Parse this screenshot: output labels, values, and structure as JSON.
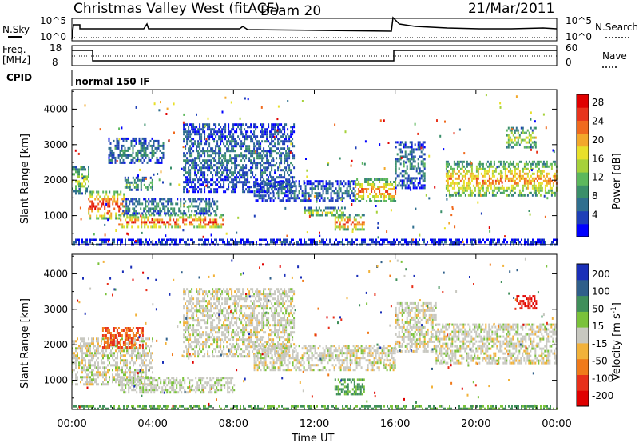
{
  "header": {
    "station": "Christmas Valley West (fitACF)",
    "beam": "Beam 20",
    "date": "21/Mar/2011"
  },
  "top_panels": {
    "nsky_label": "N.Sky",
    "nsky_ticks": [
      "10^5",
      "10^0"
    ],
    "nsearch_label": "N.Search",
    "nsearch_ticks": [
      "10^5",
      "10^0"
    ],
    "freq_label_line1": "Freq.",
    "freq_label_line2": "[MHz]",
    "freq_ticks": [
      "18",
      "8"
    ],
    "nave_label": "Nave",
    "nave_ticks": [
      "60",
      "0"
    ],
    "cpid_label": "CPID",
    "cpid_value": "normal 150 IF"
  },
  "chart_data": [
    {
      "type": "heatmap",
      "name": "power",
      "xlabel": "",
      "ylabel": "Slant Range [km]",
      "xlim": [
        0,
        24
      ],
      "ylim": [
        180,
        4550
      ],
      "yticks": [
        "1000",
        "2000",
        "3000",
        "4000"
      ],
      "xticks": [
        "00:00",
        "04:00",
        "08:00",
        "12:00",
        "16:00",
        "20:00",
        "00:00"
      ],
      "colorbar": {
        "label": "Power [dB]",
        "ticks": [
          "4",
          "8",
          "12",
          "16",
          "20",
          "24",
          "28"
        ],
        "colors": [
          "#0000ff",
          "#1e3fb8",
          "#2f6f8f",
          "#3a8f6a",
          "#5cb85c",
          "#a6d13a",
          "#e8e02a",
          "#f3a82a",
          "#f06a1e",
          "#e8341c",
          "#e00000"
        ]
      },
      "features": [
        {
          "t0": 0.0,
          "t1": 0.8,
          "r0": 1650,
          "r1": 2400,
          "level": 0.55
        },
        {
          "t0": 0.8,
          "t1": 2.6,
          "r0": 900,
          "r1": 1700,
          "level": 0.95
        },
        {
          "t0": 2.6,
          "t1": 4.0,
          "r0": 1700,
          "r1": 2100,
          "level": 0.4
        },
        {
          "t0": 1.8,
          "t1": 4.5,
          "r0": 2500,
          "r1": 3200,
          "level": 0.3
        },
        {
          "t0": 2.3,
          "t1": 7.5,
          "r0": 650,
          "r1": 1050,
          "level": 0.9
        },
        {
          "t0": 2.5,
          "t1": 7.2,
          "r0": 1050,
          "r1": 1500,
          "level": 0.35
        },
        {
          "t0": 5.5,
          "t1": 11.0,
          "r0": 1700,
          "r1": 3600,
          "level": 0.25
        },
        {
          "t0": 9.0,
          "t1": 14.0,
          "r0": 1400,
          "r1": 2000,
          "level": 0.25
        },
        {
          "t0": 11.5,
          "t1": 13.5,
          "r0": 1000,
          "r1": 1250,
          "level": 0.55
        },
        {
          "t0": 13.0,
          "t1": 14.5,
          "r0": 600,
          "r1": 1050,
          "level": 0.85
        },
        {
          "t0": 14.0,
          "t1": 16.0,
          "r0": 1400,
          "r1": 2050,
          "level": 0.8
        },
        {
          "t0": 16.0,
          "t1": 17.5,
          "r0": 1800,
          "r1": 3100,
          "level": 0.3
        },
        {
          "t0": 18.5,
          "t1": 24.0,
          "r0": 1550,
          "r1": 2550,
          "level": 0.75
        },
        {
          "t0": 21.5,
          "t1": 23.0,
          "r0": 2900,
          "r1": 3500,
          "level": 0.55
        },
        {
          "t0": 0.0,
          "t1": 24.0,
          "r0": 180,
          "r1": 350,
          "level": 0.15
        }
      ]
    },
    {
      "type": "heatmap",
      "name": "velocity",
      "xlabel": "Time UT",
      "ylabel": "Slant Range [km]",
      "xlim": [
        0,
        24
      ],
      "ylim": [
        180,
        4550
      ],
      "yticks": [
        "1000",
        "2000",
        "3000",
        "4000"
      ],
      "xticks": [
        "00:00",
        "04:00",
        "08:00",
        "12:00",
        "16:00",
        "20:00",
        "00:00"
      ],
      "colorbar": {
        "label": "Velocity [m s^-1]",
        "ticks": [
          "200",
          "100",
          "50",
          "15",
          "-15",
          "-50",
          "-100",
          "-200"
        ],
        "colors": [
          "#1a2fb8",
          "#2f5f8a",
          "#3f8f5a",
          "#7ac23a",
          "#c8c8c0",
          "#f2b23a",
          "#f07a1a",
          "#e8301a",
          "#e00000"
        ]
      },
      "features": [
        {
          "t0": 0.0,
          "t1": 4.0,
          "r0": 900,
          "r1": 2200,
          "level": 0.0
        },
        {
          "t0": 2.3,
          "t1": 8.0,
          "r0": 650,
          "r1": 1100,
          "level": 0.05
        },
        {
          "t0": 1.5,
          "t1": 3.5,
          "r0": 1900,
          "r1": 2500,
          "level": -0.6
        },
        {
          "t0": 5.5,
          "t1": 11.0,
          "r0": 1700,
          "r1": 3600,
          "level": 0.0
        },
        {
          "t0": 9.0,
          "t1": 16.0,
          "r0": 1300,
          "r1": 2000,
          "level": 0.0
        },
        {
          "t0": 13.0,
          "t1": 14.5,
          "r0": 600,
          "r1": 1050,
          "level": 0.4
        },
        {
          "t0": 16.0,
          "t1": 18.0,
          "r0": 1800,
          "r1": 3200,
          "level": 0.0
        },
        {
          "t0": 18.0,
          "t1": 24.0,
          "r0": 1500,
          "r1": 2600,
          "level": 0.0
        },
        {
          "t0": 22.0,
          "t1": 23.0,
          "r0": 3000,
          "r1": 3400,
          "level": -0.9
        },
        {
          "t0": 0.0,
          "t1": 24.0,
          "r0": 180,
          "r1": 300,
          "level": 0.4
        }
      ]
    }
  ]
}
